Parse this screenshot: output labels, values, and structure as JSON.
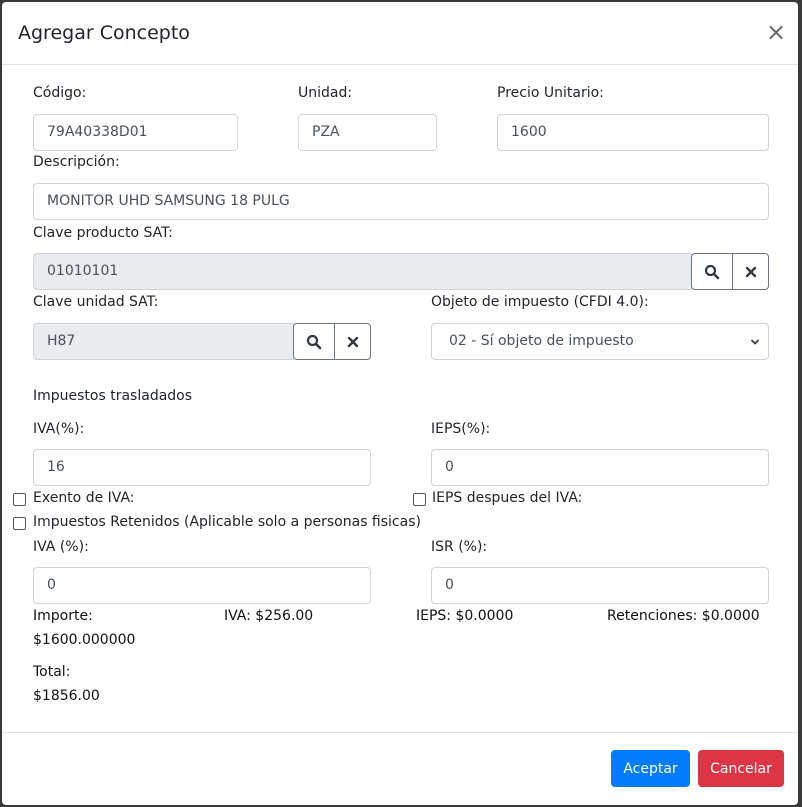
{
  "modal": {
    "title": "Agregar Concepto",
    "close_glyph": "×"
  },
  "form": {
    "codigo": {
      "label": "Código:",
      "value": "79A40338D01"
    },
    "unidad": {
      "label": "Unidad:",
      "value": "PZA"
    },
    "precio": {
      "label": "Precio Unitario:",
      "value": "1600"
    },
    "descripcion": {
      "label": "Descripción:",
      "value": "MONITOR UHD SAMSUNG 18 PULG"
    },
    "clave_producto": {
      "label": "Clave producto SAT:",
      "value": "01010101"
    },
    "clave_unidad": {
      "label": "Clave unidad SAT:",
      "value": "H87"
    },
    "objeto": {
      "label": "Objeto de impuesto (CFDI 4.0):",
      "selected": "02 - Sí objeto de impuesto"
    },
    "trasladados_heading": "Impuestos trasladados",
    "iva": {
      "label": "IVA(%):",
      "value": "16"
    },
    "ieps": {
      "label": "IEPS(%):",
      "value": "0"
    },
    "exento_iva": {
      "label": "Exento de IVA:",
      "checked": false
    },
    "ieps_despues": {
      "label": "IEPS despues del IVA:",
      "checked": false
    },
    "retenidos": {
      "label": "Impuestos Retenidos (Aplicable solo a personas fisicas)",
      "checked": false
    },
    "iva_ret": {
      "label": "IVA (%):",
      "value": "0"
    },
    "isr_ret": {
      "label": "ISR (%):",
      "value": "0"
    }
  },
  "totals": {
    "importe_label": "Importe:",
    "importe_value": "$1600.000000",
    "iva": "IVA: $256.00",
    "ieps": "IEPS: $0.0000",
    "retenciones": "Retenciones: $0.0000",
    "total_label": "Total:",
    "total_value": "$1856.00"
  },
  "footer": {
    "accept": "Aceptar",
    "cancel": "Cancelar"
  },
  "colors": {
    "primary": "#007bff",
    "danger": "#dc3545"
  }
}
